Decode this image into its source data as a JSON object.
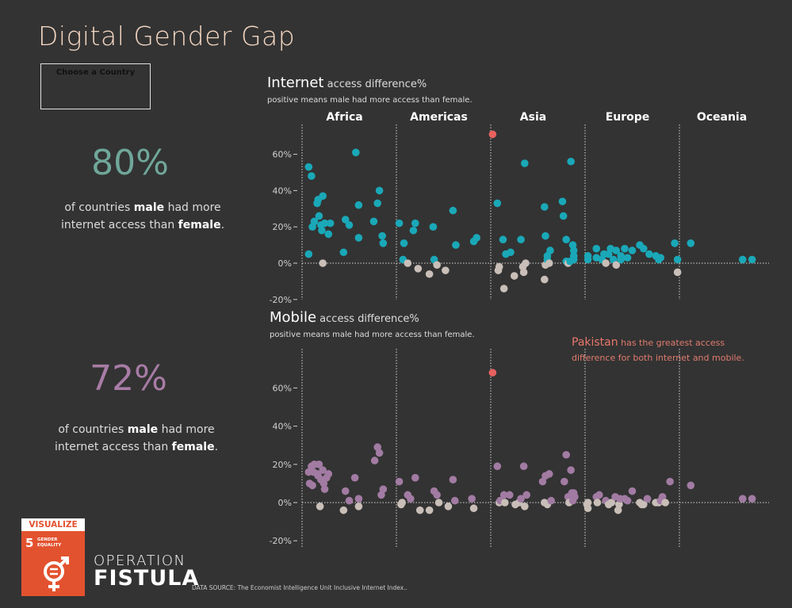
{
  "title": "Digital Gender Gap",
  "chooser": {
    "label": "Choose a Country"
  },
  "stats": {
    "internet": {
      "value": "80%",
      "text_before": "of countries ",
      "male": "male",
      "text_mid": " had more",
      "text_line2": "internet access than ",
      "female": "female",
      "text_end": "."
    },
    "mobile": {
      "value": "72%",
      "text_before": "of countries ",
      "male": "male",
      "text_mid": " had more",
      "text_line2": "internet access than ",
      "female": "female",
      "text_end": "."
    }
  },
  "annotation": {
    "country": "Pakistan",
    "text_line1": " has the greatest access",
    "text_line2": "difference for both internet and mobile."
  },
  "logo": {
    "header": "VISUALIZE",
    "goal_number": "5",
    "goal_line1": "GENDER",
    "goal_line2": "EQUALITY"
  },
  "brand": {
    "line1": "OPERATION",
    "line2": "FISTULA"
  },
  "source": "DATA SOURCE: The Economist Intelligence Unit Inclusive Internet Index..",
  "colors": {
    "internet_positive": "#1aa8b8",
    "mobile_positive": "#a27ba3",
    "negative": "#c9bfb8",
    "highlight": "#e8615e"
  },
  "chart_data": [
    {
      "type": "scatter",
      "title_strong": "Internet",
      "title_rest": " access difference%",
      "subtitle": "positive means male had more access than  female.",
      "categories": [
        "Africa",
        "Americas",
        "Asia",
        "Europe",
        "Oceania"
      ],
      "ylim": [
        -20,
        75
      ],
      "yticks": [
        -20,
        0,
        20,
        40,
        60
      ],
      "highlight": {
        "category": "Asia",
        "x": 0.02,
        "y": 71
      },
      "points": {
        "Africa": [
          [
            0.07,
            53
          ],
          [
            0.1,
            48
          ],
          [
            0.11,
            20
          ],
          [
            0.13,
            23
          ],
          [
            0.16,
            33
          ],
          [
            0.17,
            35
          ],
          [
            0.18,
            26
          ],
          [
            0.2,
            21
          ],
          [
            0.21,
            18
          ],
          [
            0.22,
            37
          ],
          [
            0.24,
            22
          ],
          [
            0.28,
            16
          ],
          [
            0.3,
            22
          ],
          [
            0.07,
            5
          ],
          [
            0.22,
            0
          ],
          [
            0.44,
            6
          ],
          [
            0.46,
            24
          ],
          [
            0.5,
            21
          ],
          [
            0.57,
            61
          ],
          [
            0.6,
            14
          ],
          [
            0.6,
            32
          ],
          [
            0.76,
            23
          ],
          [
            0.8,
            33
          ],
          [
            0.82,
            40
          ],
          [
            0.85,
            15
          ],
          [
            0.86,
            11
          ]
        ],
        "Americas": [
          [
            0.03,
            22
          ],
          [
            0.07,
            2
          ],
          [
            0.08,
            11
          ],
          [
            0.12,
            0
          ],
          [
            0.18,
            18
          ],
          [
            0.2,
            22
          ],
          [
            0.23,
            -3
          ],
          [
            0.35,
            -6
          ],
          [
            0.39,
            20
          ],
          [
            0.4,
            2
          ],
          [
            0.43,
            -1
          ],
          [
            0.52,
            -4
          ],
          [
            0.6,
            29
          ],
          [
            0.63,
            10
          ],
          [
            0.82,
            12
          ],
          [
            0.85,
            14
          ]
        ],
        "Asia": [
          [
            0.07,
            33
          ],
          [
            0.08,
            -4
          ],
          [
            0.09,
            -2
          ],
          [
            0.13,
            13
          ],
          [
            0.14,
            -14
          ],
          [
            0.16,
            5
          ],
          [
            0.21,
            6
          ],
          [
            0.25,
            -7
          ],
          [
            0.32,
            13
          ],
          [
            0.34,
            -2
          ],
          [
            0.35,
            -5
          ],
          [
            0.36,
            55
          ],
          [
            0.37,
            0
          ],
          [
            0.57,
            -9
          ],
          [
            0.57,
            31
          ],
          [
            0.58,
            -1
          ],
          [
            0.58,
            15
          ],
          [
            0.6,
            2
          ],
          [
            0.6,
            4
          ],
          [
            0.62,
            0
          ],
          [
            0.63,
            7
          ],
          [
            0.76,
            34
          ],
          [
            0.77,
            26
          ],
          [
            0.8,
            13
          ],
          [
            0.8,
            1
          ],
          [
            0.82,
            0
          ],
          [
            0.84,
            1
          ],
          [
            0.85,
            56
          ],
          [
            0.87,
            10
          ],
          [
            0.88,
            4
          ],
          [
            0.88,
            7
          ],
          [
            0.88,
            2
          ]
        ],
        "Europe": [
          [
            0.03,
            4
          ],
          [
            0.03,
            2
          ],
          [
            0.12,
            8
          ],
          [
            0.12,
            3
          ],
          [
            0.18,
            2
          ],
          [
            0.2,
            5
          ],
          [
            0.22,
            0
          ],
          [
            0.25,
            5
          ],
          [
            0.27,
            8
          ],
          [
            0.3,
            2
          ],
          [
            0.33,
            7
          ],
          [
            0.33,
            -1
          ],
          [
            0.38,
            4
          ],
          [
            0.38,
            2
          ],
          [
            0.42,
            8
          ],
          [
            0.45,
            3
          ],
          [
            0.5,
            7
          ],
          [
            0.58,
            10
          ],
          [
            0.62,
            8
          ],
          [
            0.68,
            5
          ],
          [
            0.75,
            4
          ],
          [
            0.78,
            2
          ],
          [
            0.8,
            3
          ],
          [
            0.95,
            11
          ],
          [
            0.98,
            -5
          ],
          [
            0.98,
            2
          ]
        ],
        "Oceania": [
          [
            0.12,
            11
          ],
          [
            0.67,
            2
          ],
          [
            0.77,
            2
          ]
        ]
      }
    },
    {
      "type": "scatter",
      "title_strong": "Mobile",
      "title_rest": " access difference%",
      "subtitle": "positive means male had more access than  female.",
      "categories": [
        "Africa",
        "Americas",
        "Asia",
        "Europe",
        "Oceania"
      ],
      "ylim": [
        -20,
        75
      ],
      "yticks": [
        -20,
        0,
        20,
        40,
        60
      ],
      "highlight": {
        "category": "Asia",
        "x": 0.02,
        "y": 68
      },
      "points": {
        "Africa": [
          [
            0.07,
            16
          ],
          [
            0.08,
            10
          ],
          [
            0.1,
            19
          ],
          [
            0.11,
            9
          ],
          [
            0.12,
            16
          ],
          [
            0.13,
            20
          ],
          [
            0.16,
            15
          ],
          [
            0.17,
            14
          ],
          [
            0.18,
            20
          ],
          [
            0.19,
            -2
          ],
          [
            0.2,
            12
          ],
          [
            0.22,
            17
          ],
          [
            0.23,
            10
          ],
          [
            0.24,
            7
          ],
          [
            0.26,
            13
          ],
          [
            0.28,
            15
          ],
          [
            0.44,
            -4
          ],
          [
            0.46,
            6
          ],
          [
            0.5,
            1
          ],
          [
            0.56,
            13
          ],
          [
            0.6,
            2
          ],
          [
            0.6,
            -2
          ],
          [
            0.77,
            22
          ],
          [
            0.8,
            29
          ],
          [
            0.82,
            26
          ],
          [
            0.84,
            4
          ],
          [
            0.86,
            7
          ]
        ],
        "Americas": [
          [
            0.03,
            11
          ],
          [
            0.05,
            -1
          ],
          [
            0.06,
            0
          ],
          [
            0.12,
            4
          ],
          [
            0.15,
            2
          ],
          [
            0.2,
            13
          ],
          [
            0.25,
            -4
          ],
          [
            0.35,
            -4
          ],
          [
            0.4,
            6
          ],
          [
            0.43,
            4
          ],
          [
            0.45,
            0
          ],
          [
            0.55,
            -2
          ],
          [
            0.6,
            12
          ],
          [
            0.62,
            1
          ],
          [
            0.8,
            2
          ],
          [
            0.82,
            -3
          ]
        ],
        "Asia": [
          [
            0.07,
            19
          ],
          [
            0.09,
            0
          ],
          [
            0.1,
            1
          ],
          [
            0.14,
            4
          ],
          [
            0.15,
            0
          ],
          [
            0.2,
            4
          ],
          [
            0.26,
            -1
          ],
          [
            0.3,
            0
          ],
          [
            0.32,
            2
          ],
          [
            0.35,
            19
          ],
          [
            0.36,
            -2
          ],
          [
            0.38,
            4
          ],
          [
            0.55,
            11
          ],
          [
            0.57,
            0
          ],
          [
            0.58,
            14
          ],
          [
            0.6,
            -1
          ],
          [
            0.62,
            15
          ],
          [
            0.64,
            1
          ],
          [
            0.78,
            11
          ],
          [
            0.8,
            25
          ],
          [
            0.82,
            3
          ],
          [
            0.83,
            0
          ],
          [
            0.85,
            17
          ],
          [
            0.86,
            5
          ],
          [
            0.87,
            1
          ],
          [
            0.88,
            5
          ],
          [
            0.89,
            3
          ]
        ],
        "Europe": [
          [
            0.02,
            -1
          ],
          [
            0.03,
            -3
          ],
          [
            0.03,
            0
          ],
          [
            0.12,
            3
          ],
          [
            0.13,
            0
          ],
          [
            0.15,
            4
          ],
          [
            0.22,
            1
          ],
          [
            0.25,
            -1
          ],
          [
            0.28,
            0
          ],
          [
            0.32,
            3
          ],
          [
            0.35,
            -4
          ],
          [
            0.36,
            -1
          ],
          [
            0.37,
            2
          ],
          [
            0.42,
            2
          ],
          [
            0.45,
            1
          ],
          [
            0.5,
            6
          ],
          [
            0.58,
            0
          ],
          [
            0.6,
            -1
          ],
          [
            0.62,
            -1
          ],
          [
            0.66,
            2
          ],
          [
            0.75,
            0
          ],
          [
            0.78,
            0
          ],
          [
            0.8,
            1
          ],
          [
            0.82,
            3
          ],
          [
            0.85,
            0
          ],
          [
            0.9,
            11
          ]
        ],
        "Oceania": [
          [
            0.12,
            9
          ],
          [
            0.67,
            2
          ],
          [
            0.77,
            2
          ]
        ]
      }
    }
  ]
}
